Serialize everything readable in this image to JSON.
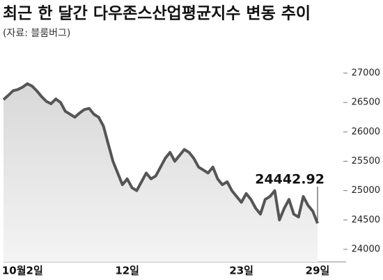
{
  "chart_data": {
    "type": "line",
    "title": "최근 한 달간 다우존스산업평균지수 변동 추이",
    "subtitle": "(자료: 블룸버그)",
    "categories": [
      null,
      null,
      null,
      null,
      "10월2일",
      null,
      null,
      null,
      null,
      null,
      null,
      null,
      null,
      null,
      null,
      null,
      null,
      null,
      null,
      null,
      null,
      null,
      null,
      null,
      null,
      null,
      "12일",
      null,
      null,
      null,
      null,
      null,
      null,
      null,
      null,
      null,
      null,
      null,
      null,
      null,
      null,
      null,
      null,
      null,
      null,
      null,
      null,
      null,
      null,
      null,
      "23일",
      null,
      null,
      null,
      null,
      null,
      null,
      null,
      null,
      null,
      null,
      null,
      null,
      null,
      null,
      null,
      "29일"
    ],
    "values": [
      26550,
      26620,
      26700,
      26720,
      26760,
      26820,
      26780,
      26700,
      26600,
      26520,
      26480,
      26560,
      26500,
      26350,
      26300,
      26250,
      26320,
      26380,
      26400,
      26300,
      26250,
      26100,
      25800,
      25500,
      25300,
      25100,
      25200,
      25050,
      25000,
      25150,
      25300,
      25200,
      25250,
      25400,
      25550,
      25650,
      25500,
      25600,
      25700,
      25650,
      25550,
      25400,
      25350,
      25300,
      25400,
      25200,
      25100,
      25150,
      25000,
      24900,
      24800,
      24950,
      24850,
      24700,
      24600,
      24850,
      24900,
      25000,
      24500,
      24700,
      24850,
      24600,
      24550,
      24900,
      24750,
      24650,
      24442.92
    ],
    "color": "#555555",
    "ylim": [
      24000,
      27000
    ],
    "yticks": [
      24000,
      24500,
      25000,
      25500,
      26000,
      26500,
      27000
    ]
  }
}
